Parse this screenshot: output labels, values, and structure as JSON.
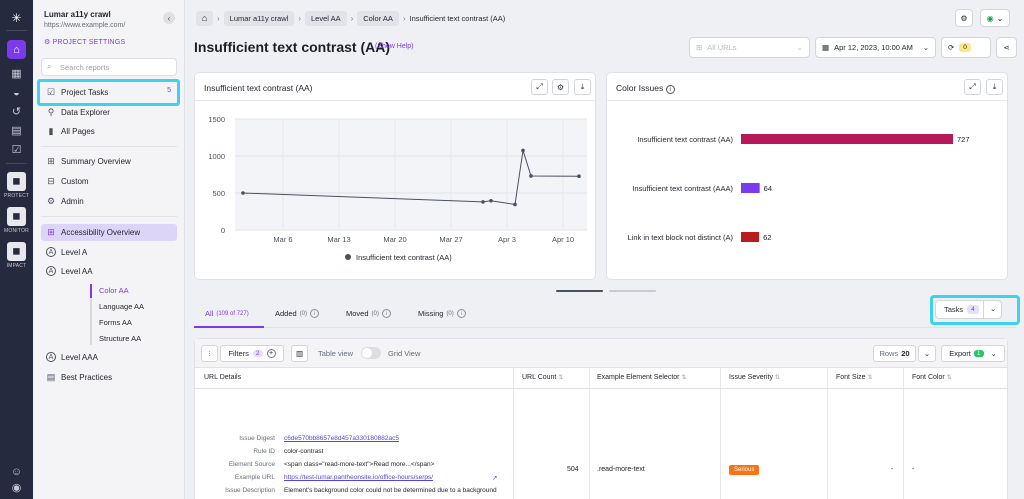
{
  "rail": {
    "products": [
      "PROTECT",
      "MONITOR",
      "IMPACT"
    ]
  },
  "sidebar": {
    "project_name": "Lumar a11y crawl",
    "project_url": "https://www.example.com/",
    "project_settings": "PROJECT SETTINGS",
    "search_placeholder": "Search reports",
    "items": [
      {
        "label": "Project Tasks",
        "badge": "5"
      },
      {
        "label": "Data Explorer"
      },
      {
        "label": "All Pages"
      },
      {
        "label": "Summary Overview"
      },
      {
        "label": "Custom"
      },
      {
        "label": "Admin"
      },
      {
        "label": "Accessibility Overview"
      },
      {
        "label": "Level A"
      },
      {
        "label": "Level AA"
      },
      {
        "label": "Level AAA"
      },
      {
        "label": "Best Practices"
      }
    ],
    "level_aa_children": [
      "Color AA",
      "Language AA",
      "Forms AA",
      "Structure AA"
    ]
  },
  "breadcrumb": [
    "Lumar a11y crawl",
    "Level AA",
    "Color AA",
    "Insufficient text contrast (AA)"
  ],
  "header": {
    "title": "Insufficient text contrast (AA)",
    "show_help": "(Show Help)",
    "segment_placeholder": "All URLs",
    "date": "Apr 12, 2023, 10:00 AM",
    "sync_count": "0"
  },
  "line_card": {
    "title": "Insufficient text contrast (AA)"
  },
  "bar_card": {
    "title": "Color Issues"
  },
  "chart_data": [
    {
      "type": "line",
      "title": "Insufficient text contrast (AA)",
      "x_ticks": [
        "Mar 6",
        "Mar 13",
        "Mar 20",
        "Mar 27",
        "Apr 3",
        "Apr 10"
      ],
      "y_ticks": [
        "0",
        "500",
        "1000",
        "1500"
      ],
      "ylim": [
        0,
        1500
      ],
      "grid": true,
      "legend": "bottom",
      "series": [
        {
          "name": "Insufficient text contrast (AA)",
          "color": "#4a5060",
          "points": [
            {
              "x": "2023-03-01",
              "y": 500
            },
            {
              "x": "2023-03-31",
              "y": 380
            },
            {
              "x": "2023-04-01",
              "y": 395
            },
            {
              "x": "2023-04-04",
              "y": 345
            },
            {
              "x": "2023-04-05",
              "y": 1075
            },
            {
              "x": "2023-04-06",
              "y": 730
            },
            {
              "x": "2023-04-12",
              "y": 727
            }
          ]
        }
      ]
    },
    {
      "type": "bar",
      "orientation": "horizontal",
      "title": "Color Issues",
      "categories": [
        "Insufficient text contrast (AA)",
        "Insufficient text contrast (AAA)",
        "Link in text block not distinct (A)"
      ],
      "values": [
        727,
        64,
        62
      ],
      "colors": [
        "#b5195a",
        "#7c3aed",
        "#b91c1c"
      ],
      "labels": [
        "727",
        "64",
        "62"
      ],
      "xlim": [
        0,
        727
      ]
    }
  ],
  "tabs": [
    {
      "label": "All",
      "count": "(109 of 727)"
    },
    {
      "label": "Added",
      "count": "(0)"
    },
    {
      "label": "Moved",
      "count": "(0)"
    },
    {
      "label": "Missing",
      "count": "(0)"
    }
  ],
  "tasks_button": {
    "label": "Tasks",
    "count": "4"
  },
  "table": {
    "filters_label": "Filters",
    "filters_count": "2",
    "table_view": "Table view",
    "grid_view": "Grid View",
    "rows_label": "Rows",
    "rows_value": "20",
    "export_label": "Export",
    "export_count": "1",
    "columns": [
      "URL Details",
      "URL Count",
      "Example Element Selector",
      "Issue Severity",
      "Font Size",
      "Font Color"
    ],
    "row": {
      "details": [
        {
          "key": "Issue Digest",
          "value": "c6de570bb8657e8d457a330180882ac5"
        },
        {
          "key": "Rule ID",
          "value": "color-contrast"
        },
        {
          "key": "Element Source",
          "value": "<span class=\"read-more-text\">Read more...</span>"
        },
        {
          "key": "Example URL",
          "value": "https://test-lumar.pantheonsite.io/office-hours/serps/"
        },
        {
          "key": "Issue Description",
          "value": "Element's background color could not be determined due to a background"
        }
      ],
      "url_count": "504",
      "selector": ".read-more-text",
      "severity": "Serious",
      "font_size": "-",
      "font_color": "-"
    }
  }
}
